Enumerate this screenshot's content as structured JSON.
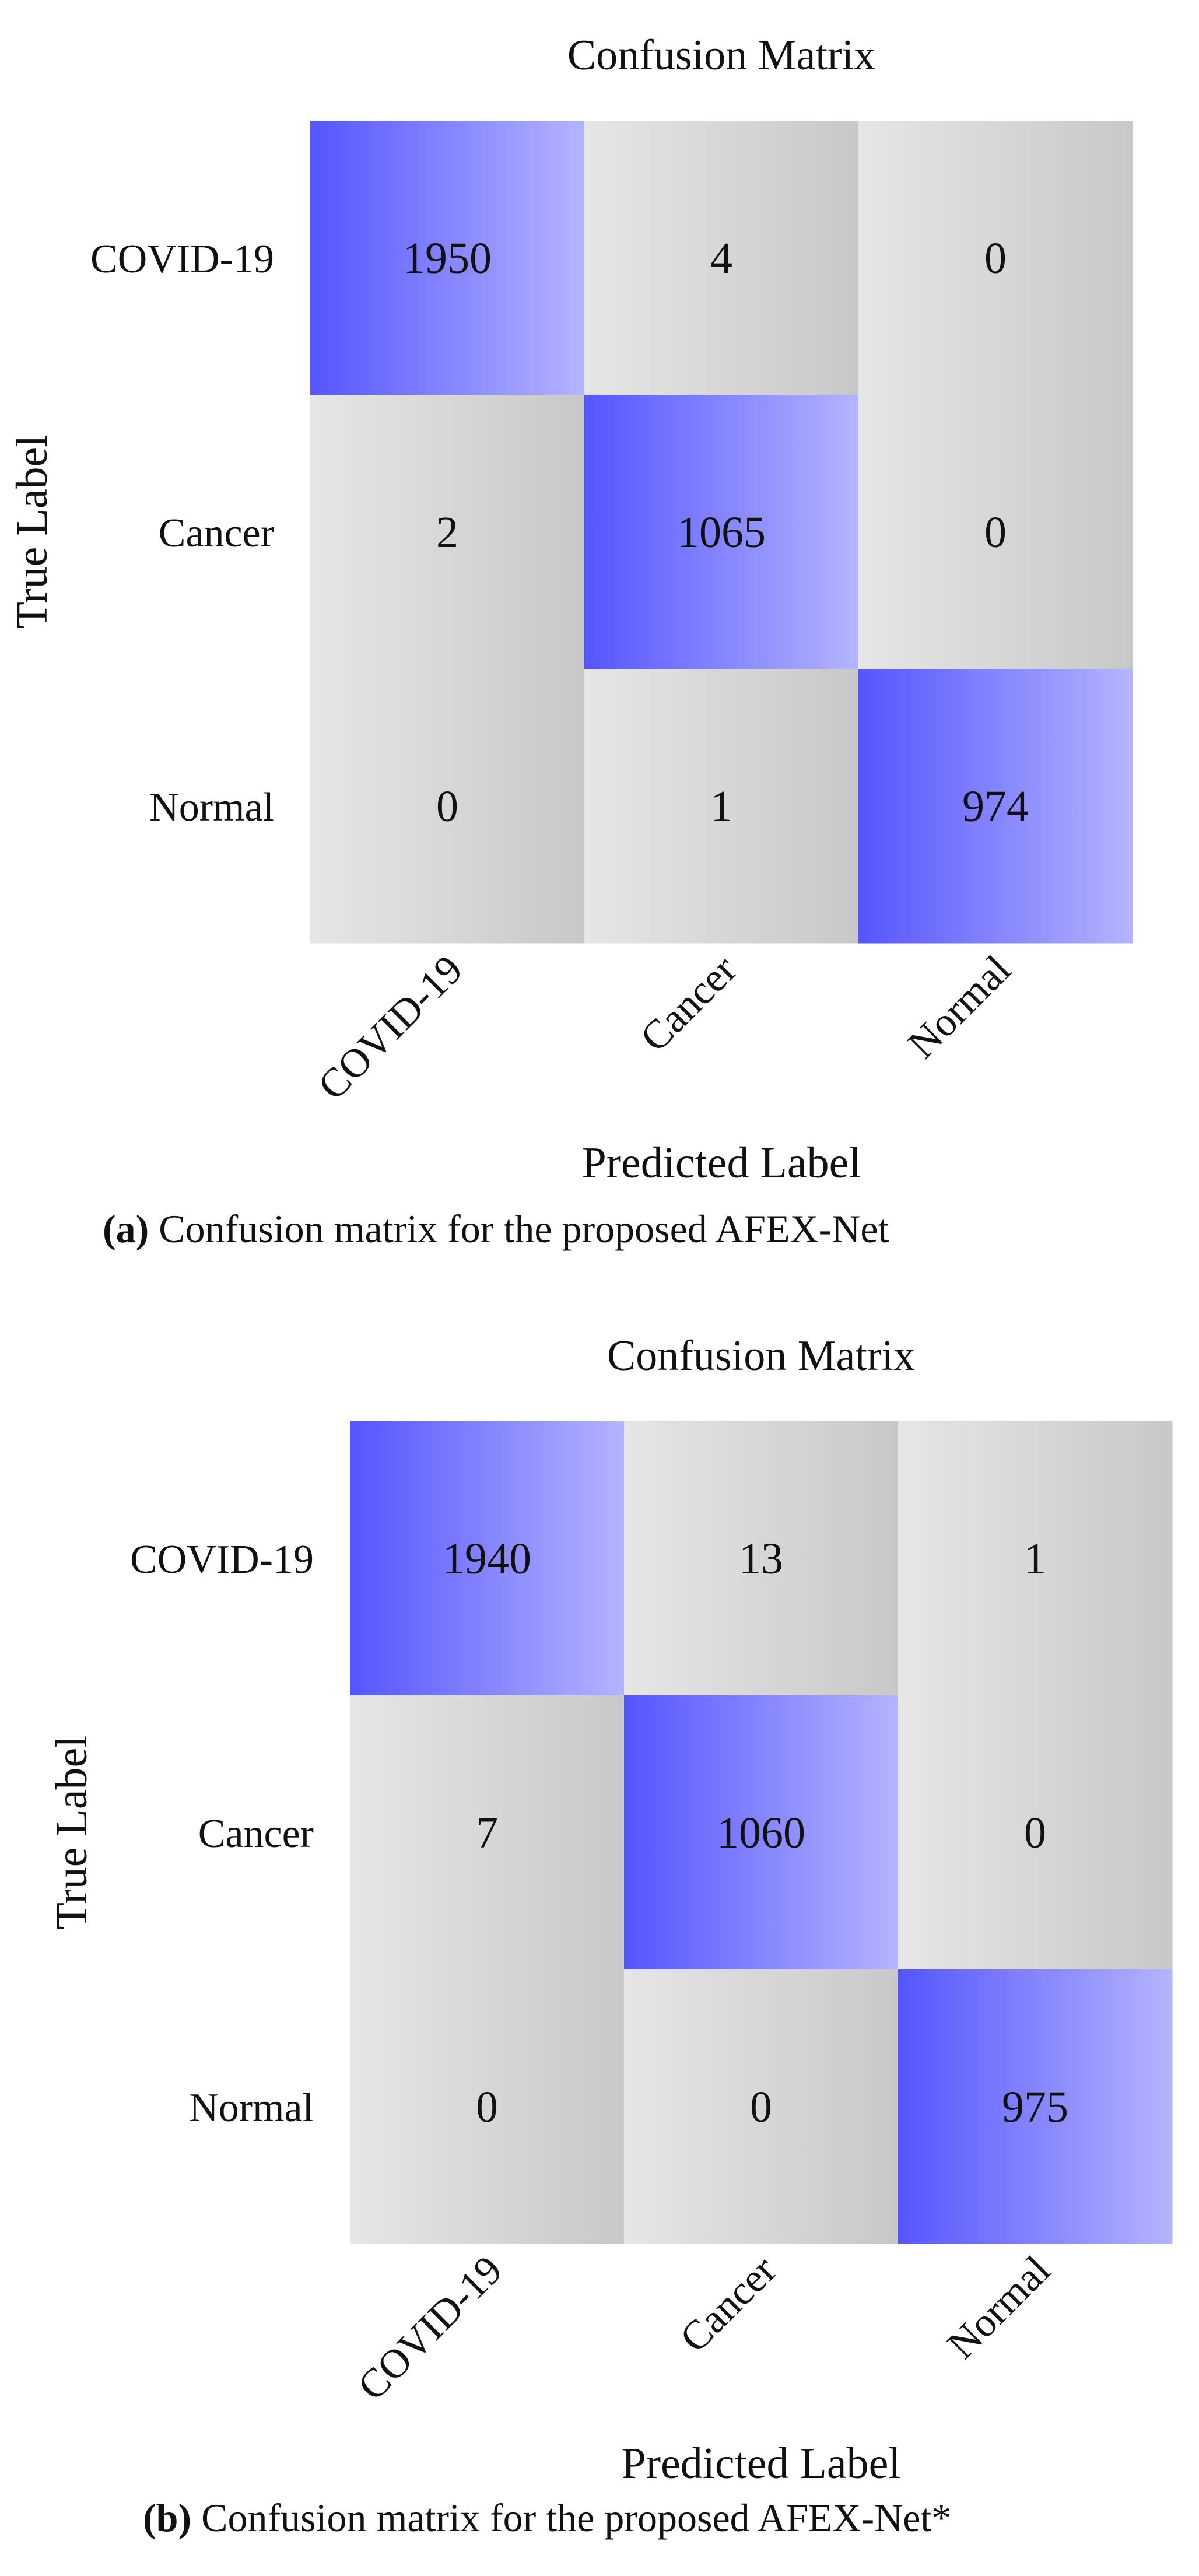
{
  "chart_data": [
    {
      "type": "heatmap",
      "title": "Confusion Matrix",
      "xlabel": "Predicted Label",
      "ylabel": "True Label",
      "x_categories": [
        "COVID-19",
        "Cancer",
        "Normal"
      ],
      "y_categories": [
        "COVID-19",
        "Cancer",
        "Normal"
      ],
      "matrix": [
        [
          1950,
          4,
          0
        ],
        [
          2,
          1065,
          0
        ],
        [
          0,
          1,
          974
        ]
      ],
      "colors": {
        "high": "#5555ff",
        "high_light": "#b4b4ff",
        "low": "#c8c8c8",
        "low_light": "#e6e6e6"
      },
      "caption_label": "(a)",
      "caption_text": " Confusion matrix for the proposed AFEX-Net"
    },
    {
      "type": "heatmap",
      "title": "Confusion Matrix",
      "xlabel": "Predicted Label",
      "ylabel": "True Label",
      "x_categories": [
        "COVID-19",
        "Cancer",
        "Normal"
      ],
      "y_categories": [
        "COVID-19",
        "Cancer",
        "Normal"
      ],
      "matrix": [
        [
          1940,
          13,
          1
        ],
        [
          7,
          1060,
          0
        ],
        [
          0,
          0,
          975
        ]
      ],
      "colors": {
        "high": "#5555ff",
        "high_light": "#b4b4ff",
        "low": "#c8c8c8",
        "low_light": "#e6e6e6"
      },
      "caption_label": "(b)",
      "caption_text": " Confusion matrix for the proposed AFEX-Net*"
    }
  ]
}
